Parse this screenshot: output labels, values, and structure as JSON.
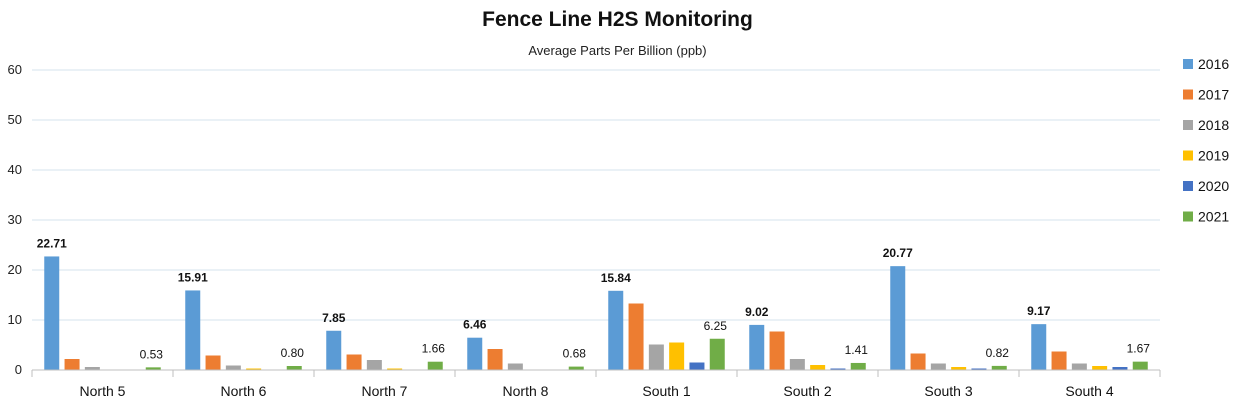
{
  "chart_data": {
    "type": "bar",
    "title": "Fence Line H2S Monitoring",
    "subtitle": "Average Parts Per Billion  (ppb)",
    "categories": [
      "North 5",
      "North 6",
      "North 7",
      "North 8",
      "South 1",
      "South 2",
      "South 3",
      "South 4"
    ],
    "ylim": [
      0,
      60
    ],
    "yticks": [
      0,
      10,
      20,
      30,
      40,
      50,
      60
    ],
    "grid": true,
    "legend_position": "right",
    "series": [
      {
        "name": "2016",
        "color": "#5B9BD5",
        "values": [
          22.71,
          15.91,
          7.85,
          6.46,
          15.84,
          9.02,
          20.77,
          9.17
        ]
      },
      {
        "name": "2017",
        "color": "#ED7D31",
        "values": [
          2.2,
          2.9,
          3.1,
          4.2,
          13.3,
          7.7,
          3.3,
          3.7
        ]
      },
      {
        "name": "2018",
        "color": "#A5A5A5",
        "values": [
          0.6,
          0.9,
          2.0,
          1.3,
          5.1,
          2.2,
          1.3,
          1.3
        ]
      },
      {
        "name": "2019",
        "color": "#FFC000",
        "values": [
          0,
          0.3,
          0.3,
          0,
          5.5,
          1.0,
          0.6,
          0.8
        ]
      },
      {
        "name": "2020",
        "color": "#4472C4",
        "values": [
          0,
          0,
          0,
          0,
          1.5,
          0.3,
          0.3,
          0.6
        ]
      },
      {
        "name": "2021",
        "color": "#70AD47",
        "values": [
          0.53,
          0.8,
          1.66,
          0.68,
          6.25,
          1.41,
          0.82,
          1.67
        ]
      }
    ],
    "data_labels": {
      "2016": [
        "22.71",
        "15.91",
        "7.85",
        "6.46",
        "15.84",
        "9.02",
        "20.77",
        "9.17"
      ],
      "2021": [
        "0.53",
        "0.80",
        "1.66",
        "0.68",
        "6.25",
        "1.41",
        "0.82",
        "1.67"
      ]
    }
  }
}
